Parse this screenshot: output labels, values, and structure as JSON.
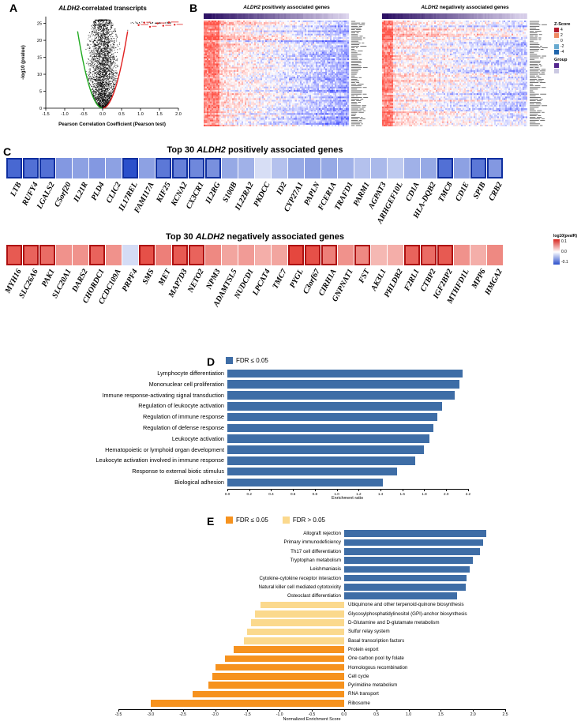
{
  "panels": {
    "a": "A",
    "b": "B",
    "c": "C",
    "d": "D",
    "e": "E"
  },
  "panel_a": {
    "title_gene": "ALDH2",
    "title_suffix": "-correlated transcripts",
    "xlabel": "Pearson Correlation Coefficient (Pearson test)",
    "ylabel": "-log10 (pvalue)",
    "x_ticks": [
      "-1.5",
      "-1.0",
      "-0.5",
      "0.0",
      "0.5",
      "1.0",
      "1.5",
      "2.0"
    ],
    "y_ticks": [
      "0",
      "5",
      "10",
      "15",
      "20",
      "25"
    ]
  },
  "panel_b": {
    "left": {
      "title_gene": "ALDH2",
      "title_suffix": " positively associated genes"
    },
    "right": {
      "title_gene": "ALDH2",
      "title_suffix": " negatively associated genes"
    },
    "legend": {
      "zscore_title": "Z-Score",
      "zscore_ticks": [
        "4",
        "2",
        "0",
        "-2",
        "-4"
      ],
      "zscore_colors": [
        "#b2182b",
        "#ef8a62",
        "#f7f7f7",
        "#67a9cf",
        "#2166ac"
      ],
      "group_title": "Group",
      "group_colors": [
        "#54278f",
        "#cbc9e2"
      ]
    }
  },
  "panel_c": {
    "positive": {
      "title_prefix": "Top 30 ",
      "title_gene": "ALDH2",
      "title_suffix": " positively associated genes"
    },
    "negative": {
      "title_prefix": "Top 30 ",
      "title_gene": "ALDH2",
      "title_suffix": " negatively associated genes"
    },
    "legend": {
      "title": "log10(pvalR)",
      "ticks": [
        "0.1",
        "0.0",
        "-0.1"
      ]
    }
  },
  "panel_d": {
    "legend_label": "FDR ≤ 0.05",
    "xlabel": "Enrichment ratio",
    "x_ticks": [
      "0.0",
      "0.2",
      "0.4",
      "0.6",
      "0.8",
      "1.0",
      "1.2",
      "1.4",
      "1.6",
      "1.8",
      "2.0",
      "2.2"
    ],
    "bar_color": "#3e6da6"
  },
  "panel_e": {
    "legend_sig": "FDR ≤ 0.05",
    "legend_ns": "FDR > 0.05",
    "xlabel": "Normalized Enrichment Score",
    "x_ticks": [
      "-3.5",
      "-3.0",
      "-2.5",
      "-2.0",
      "-1.5",
      "-1.0",
      "-0.5",
      "0.0",
      "0.5",
      "1.0",
      "1.5",
      "2.0",
      "2.5"
    ],
    "colors": {
      "positive": "#3e6da6",
      "negative_sig": "#f6921e",
      "negative_ns": "#fbd98d"
    }
  },
  "chart_data": [
    {
      "type": "scatter",
      "panel": "A",
      "title": "ALDH2-correlated transcripts",
      "xlabel": "Pearson Correlation Coefficient (Pearson test)",
      "ylabel": "-log10 (pvalue)",
      "xlim": [
        -1.5,
        2.0
      ],
      "ylim": [
        0,
        27
      ],
      "highlighted_points": [
        [
          0.95,
          24.5
        ],
        [
          1.1,
          25.2
        ],
        [
          1.25,
          24.0
        ],
        [
          1.45,
          25.0
        ],
        [
          1.6,
          24.3
        ],
        [
          1.75,
          25.3
        ],
        [
          1.9,
          24.6
        ]
      ],
      "description": "volcano-shaped black point cloud with green fitted curve on negative branch and red fitted curve on positive branch; significant genes marked red at upper right"
    },
    {
      "type": "heatmap",
      "panel": "B-left",
      "title": "ALDH2 positively associated genes",
      "colormap": "red-white-blue Z-Score",
      "annotation": "purple gradient group bar on top, gene names on right"
    },
    {
      "type": "heatmap",
      "panel": "B-right",
      "title": "ALDH2 negatively associated genes",
      "colormap": "red-white-blue Z-Score",
      "annotation": "purple gradient group bar on top, gene names on right"
    },
    {
      "type": "heatmap",
      "panel": "C-positive",
      "title": "Top 30 ALDH2 positively associated genes",
      "palette": "blue",
      "categories": [
        "LTB",
        "RUFY4",
        "LGALS2",
        "C5orf20",
        "IL21R",
        "PLD4",
        "CLIC2",
        "IL17REL",
        "FAM117A",
        "KIF25",
        "KCNA2",
        "CX3CR1",
        "IL2RG",
        "S100B",
        "IL22RA2",
        "PKDCC",
        "ID2",
        "CYP27A1",
        "PAPLN",
        "FCER1A",
        "TRAFD1",
        "PARM1",
        "AGPAT3",
        "ARHGEF10L",
        "CD1A",
        "HLA-DQB2",
        "TMC8",
        "CD1E",
        "SPIB",
        "CRB2"
      ],
      "values": [
        0.85,
        0.8,
        0.8,
        0.55,
        0.5,
        0.55,
        0.5,
        1.0,
        0.5,
        0.75,
        0.7,
        0.65,
        0.6,
        0.45,
        0.4,
        0.12,
        0.3,
        0.45,
        0.5,
        0.45,
        0.4,
        0.3,
        0.35,
        0.25,
        0.4,
        0.45,
        0.8,
        0.5,
        0.75,
        0.55
      ],
      "boxed": [
        true,
        true,
        true,
        false,
        false,
        false,
        false,
        true,
        false,
        true,
        true,
        true,
        true,
        false,
        false,
        false,
        false,
        false,
        false,
        false,
        false,
        false,
        false,
        false,
        false,
        false,
        true,
        false,
        true,
        true
      ]
    },
    {
      "type": "heatmap",
      "panel": "C-negative",
      "title": "Top 30 ALDH2 negatively associated genes",
      "palette": "red",
      "categories": [
        "MYH16",
        "SLC26A6",
        "PAK1",
        "SLC20A1",
        "DARS2",
        "CHORDC1",
        "CCDC109A",
        "PRPF4",
        "SMS",
        "MET",
        "MAP7D3",
        "NETO2",
        "NPM3",
        "ADAMTSL5",
        "NUDCD1",
        "LPCAT4",
        "TMC7",
        "PYGL",
        "C3orf67",
        "CIRH1A",
        "GNPNAT1",
        "FST",
        "AK3L1",
        "PHLDB2",
        "F2RL1",
        "CTBP2",
        "IGF2BP2",
        "MTHFD1L",
        "MPP6",
        "HMGA2"
      ],
      "values": [
        0.8,
        0.75,
        0.7,
        0.5,
        0.5,
        0.75,
        0.5,
        -0.3,
        0.85,
        0.6,
        0.8,
        0.75,
        0.55,
        0.4,
        0.45,
        0.35,
        0.4,
        0.9,
        0.85,
        0.6,
        0.5,
        0.55,
        0.3,
        0.35,
        0.75,
        0.7,
        0.8,
        0.5,
        0.35,
        0.55
      ],
      "boxed": [
        true,
        true,
        true,
        false,
        false,
        true,
        false,
        false,
        true,
        false,
        true,
        true,
        false,
        false,
        false,
        false,
        false,
        true,
        true,
        true,
        false,
        true,
        false,
        false,
        true,
        true,
        true,
        false,
        false,
        false
      ]
    },
    {
      "type": "bar",
      "panel": "D",
      "orientation": "horizontal",
      "legend": [
        "FDR ≤ 0.05"
      ],
      "xlabel": "Enrichment ratio",
      "xlim": [
        0,
        2.2
      ],
      "categories": [
        "Lymphocyte differentiation",
        "Mononuclear cell proliferation",
        "Immune response-activating signal transduction",
        "Regulation of leukocyte activation",
        "Regulation of immune response",
        "Regulation of defense response",
        "Leukocyte activation",
        "Hematopoietic or lymphoid organ development",
        "Leukocyte activation involved in immune response",
        "Response to external biotic stimulus",
        "Biological adhesion"
      ],
      "values": [
        2.15,
        2.12,
        2.08,
        1.96,
        1.92,
        1.88,
        1.85,
        1.8,
        1.72,
        1.55,
        1.42
      ]
    },
    {
      "type": "bar",
      "panel": "E",
      "orientation": "horizontal",
      "legend": [
        "FDR ≤ 0.05",
        "FDR > 0.05"
      ],
      "xlabel": "Normalized Enrichment Score",
      "xlim": [
        -3.5,
        2.5
      ],
      "categories": [
        "Allograft rejection",
        "Primary immunodeficiency",
        "Th17 cell differentiation",
        "Tryptophan metabolism",
        "Leishmaniasis",
        "Cytokine-cytokine receptor interaction",
        "Natural killer cell mediated cytotoxicity",
        "Osteoclast differentiation",
        "Ubiquinone and other terpenoid-quinone biosynthesis",
        "Glycosylphosphatidylinositol (GPI)-anchor biosynthesis",
        "D-Glutamine and D-glutamate metabolism",
        "Sulfur relay system",
        "Basal transcription factors",
        "Protein export",
        "One carbon pool by folate",
        "Homologous recombination",
        "Cell cycle",
        "Pyrimidine metabolism",
        "RNA transport",
        "Ribosome"
      ],
      "values": [
        2.2,
        2.15,
        2.1,
        2.0,
        1.95,
        1.9,
        1.88,
        1.75,
        -1.3,
        -1.38,
        -1.45,
        -1.5,
        -1.55,
        -1.72,
        -1.85,
        -2.0,
        -2.05,
        -2.1,
        -2.35,
        -3.0
      ],
      "groups": [
        "sig_pos",
        "sig_pos",
        "sig_pos",
        "sig_pos",
        "sig_pos",
        "sig_pos",
        "sig_pos",
        "sig_pos",
        "ns_neg",
        "ns_neg",
        "ns_neg",
        "ns_neg",
        "ns_neg",
        "sig_neg",
        "sig_neg",
        "sig_neg",
        "sig_neg",
        "sig_neg",
        "sig_neg",
        "sig_neg"
      ]
    }
  ]
}
